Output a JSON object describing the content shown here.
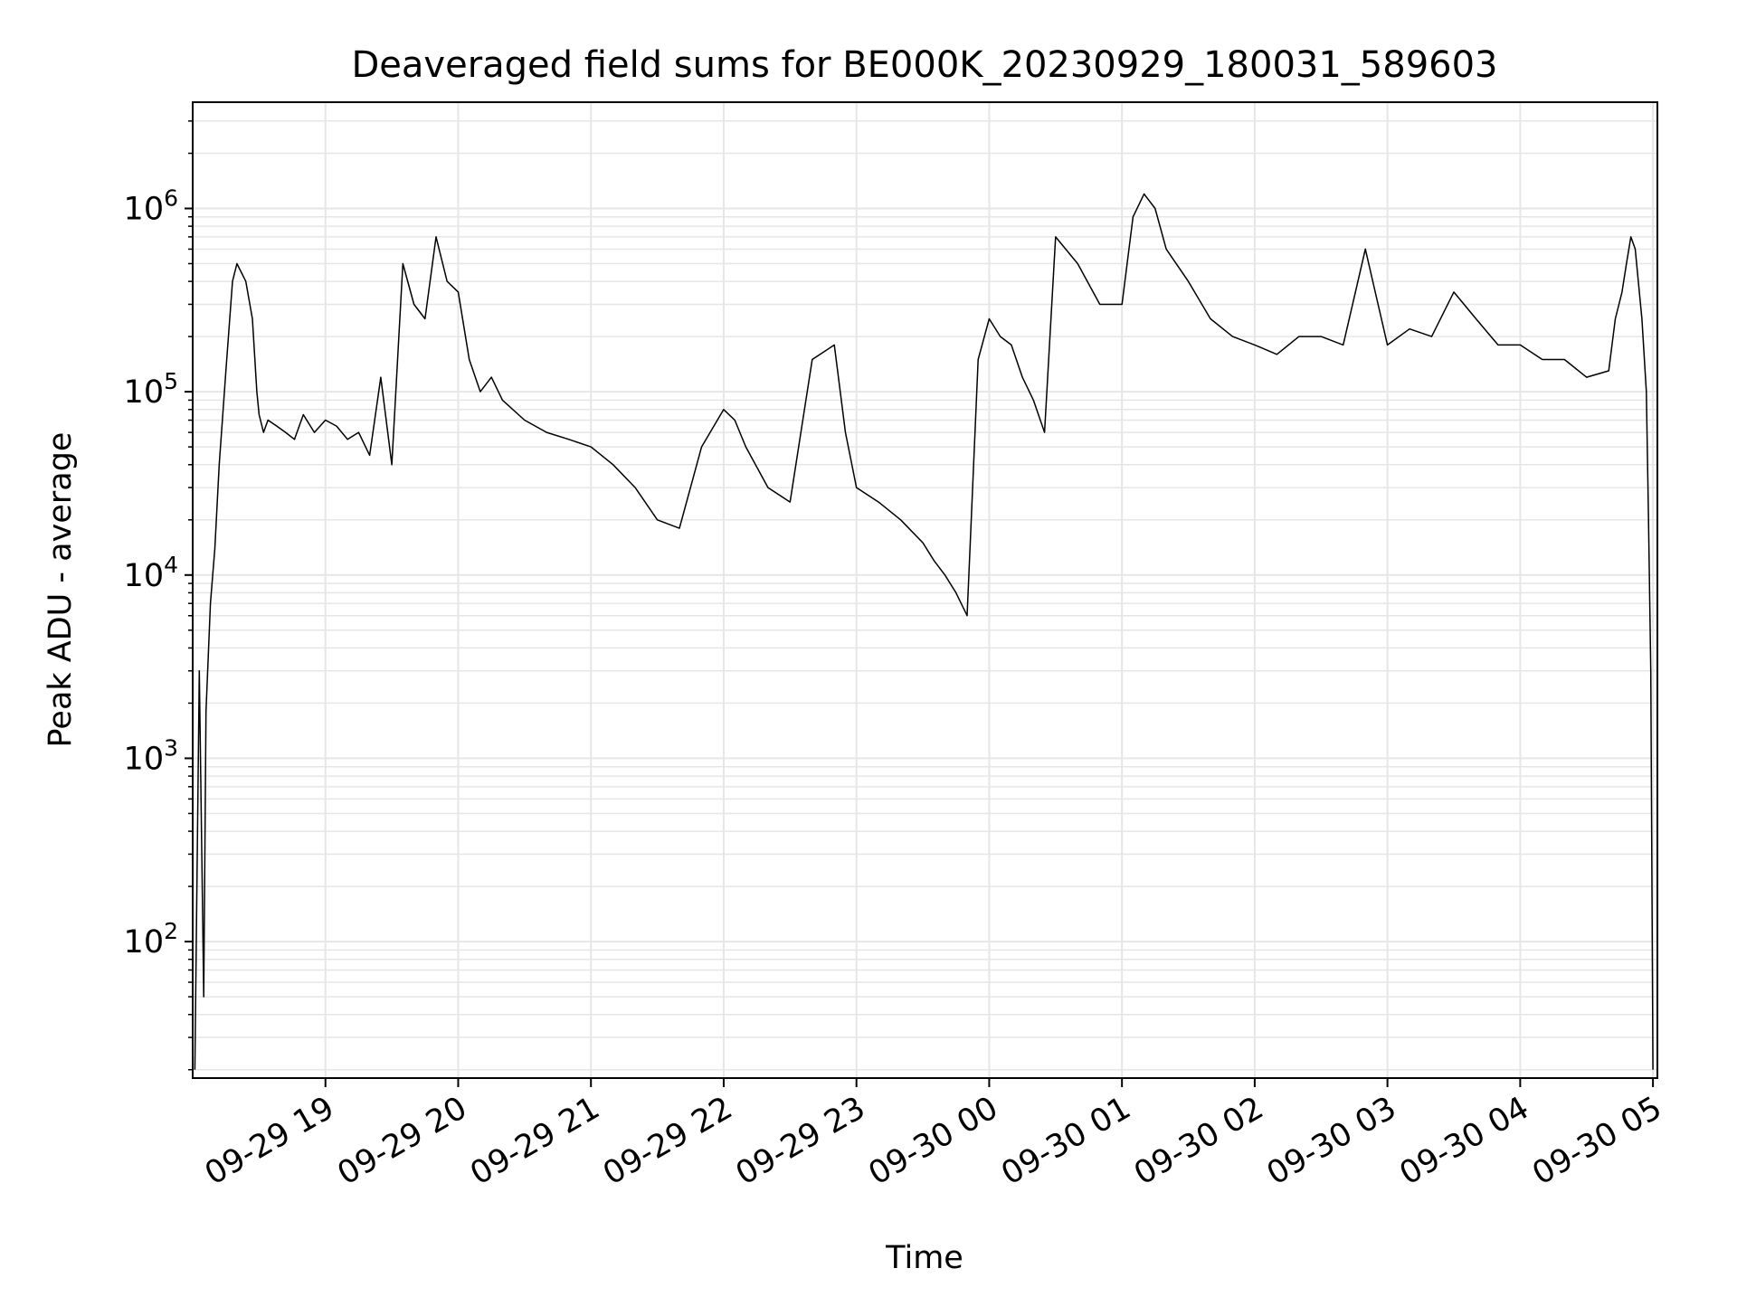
{
  "chart_data": {
    "type": "line",
    "title": "Deaveraged field sums for BE000K_20230929_180031_589603",
    "xlabel": "Time",
    "ylabel": "Peak ADU - average",
    "yscale": "log",
    "ylim": [
      18,
      3800000
    ],
    "xlim": [
      "2023-09-29 18:00",
      "2023-09-30 05:02"
    ],
    "grid": true,
    "line_color": "#000000",
    "grid_color": "#e6e6e6",
    "x_ticks": [
      {
        "value": "2023-09-29 19:00",
        "label": "09-29 19"
      },
      {
        "value": "2023-09-29 20:00",
        "label": "09-29 20"
      },
      {
        "value": "2023-09-29 21:00",
        "label": "09-29 21"
      },
      {
        "value": "2023-09-29 22:00",
        "label": "09-29 22"
      },
      {
        "value": "2023-09-29 23:00",
        "label": "09-29 23"
      },
      {
        "value": "2023-09-30 00:00",
        "label": "09-30 00"
      },
      {
        "value": "2023-09-30 01:00",
        "label": "09-30 01"
      },
      {
        "value": "2023-09-30 02:00",
        "label": "09-30 02"
      },
      {
        "value": "2023-09-30 03:00",
        "label": "09-30 03"
      },
      {
        "value": "2023-09-30 04:00",
        "label": "09-30 04"
      },
      {
        "value": "2023-09-30 05:00",
        "label": "09-30 05"
      }
    ],
    "y_ticks": [
      {
        "value": 100,
        "base": "10",
        "exp": "2"
      },
      {
        "value": 1000,
        "base": "10",
        "exp": "3"
      },
      {
        "value": 10000,
        "base": "10",
        "exp": "4"
      },
      {
        "value": 100000,
        "base": "10",
        "exp": "5"
      },
      {
        "value": 1000000,
        "base": "10",
        "exp": "6"
      }
    ],
    "series": [
      {
        "x": [
          "2023-09-29 18:01",
          "2023-09-29 18:03",
          "2023-09-29 18:05",
          "2023-09-29 18:06",
          "2023-09-29 18:08",
          "2023-09-29 18:10",
          "2023-09-29 18:12",
          "2023-09-29 18:15",
          "2023-09-29 18:18",
          "2023-09-29 18:20",
          "2023-09-29 18:24",
          "2023-09-29 18:27",
          "2023-09-29 18:29",
          "2023-09-29 18:30",
          "2023-09-29 18:32",
          "2023-09-29 18:34",
          "2023-09-29 18:38",
          "2023-09-29 18:42",
          "2023-09-29 18:46",
          "2023-09-29 18:50",
          "2023-09-29 18:55",
          "2023-09-29 19:00",
          "2023-09-29 19:05",
          "2023-09-29 19:10",
          "2023-09-29 19:15",
          "2023-09-29 19:20",
          "2023-09-29 19:25",
          "2023-09-29 19:30",
          "2023-09-29 19:35",
          "2023-09-29 19:40",
          "2023-09-29 19:45",
          "2023-09-29 19:50",
          "2023-09-29 19:55",
          "2023-09-29 20:00",
          "2023-09-29 20:05",
          "2023-09-29 20:10",
          "2023-09-29 20:15",
          "2023-09-29 20:20",
          "2023-09-29 20:30",
          "2023-09-29 20:40",
          "2023-09-29 20:50",
          "2023-09-29 21:00",
          "2023-09-29 21:10",
          "2023-09-29 21:20",
          "2023-09-29 21:30",
          "2023-09-29 21:40",
          "2023-09-29 21:50",
          "2023-09-29 22:00",
          "2023-09-29 22:05",
          "2023-09-29 22:10",
          "2023-09-29 22:20",
          "2023-09-29 22:30",
          "2023-09-29 22:40",
          "2023-09-29 22:50",
          "2023-09-29 22:55",
          "2023-09-29 23:00",
          "2023-09-29 23:10",
          "2023-09-29 23:20",
          "2023-09-29 23:30",
          "2023-09-29 23:35",
          "2023-09-29 23:40",
          "2023-09-29 23:45",
          "2023-09-29 23:50",
          "2023-09-29 23:55",
          "2023-09-30 00:00",
          "2023-09-30 00:05",
          "2023-09-30 00:10",
          "2023-09-30 00:15",
          "2023-09-30 00:20",
          "2023-09-30 00:25",
          "2023-09-30 00:30",
          "2023-09-30 00:40",
          "2023-09-30 00:50",
          "2023-09-30 01:00",
          "2023-09-30 01:05",
          "2023-09-30 01:10",
          "2023-09-30 01:15",
          "2023-09-30 01:20",
          "2023-09-30 01:30",
          "2023-09-30 01:40",
          "2023-09-30 01:50",
          "2023-09-30 02:00",
          "2023-09-30 02:10",
          "2023-09-30 02:20",
          "2023-09-30 02:30",
          "2023-09-30 02:40",
          "2023-09-30 02:50",
          "2023-09-30 03:00",
          "2023-09-30 03:10",
          "2023-09-30 03:20",
          "2023-09-30 03:30",
          "2023-09-30 03:40",
          "2023-09-30 03:50",
          "2023-09-30 04:00",
          "2023-09-30 04:10",
          "2023-09-30 04:20",
          "2023-09-30 04:30",
          "2023-09-30 04:40",
          "2023-09-30 04:43",
          "2023-09-30 04:46",
          "2023-09-30 04:48",
          "2023-09-30 04:50",
          "2023-09-30 04:52",
          "2023-09-30 04:55",
          "2023-09-30 04:57",
          "2023-09-30 04:58",
          "2023-09-30 04:59",
          "2023-09-30 05:00"
        ],
        "y": [
          20,
          3000,
          50,
          1800,
          7000,
          14000,
          40000,
          130000,
          400000,
          500000,
          400000,
          250000,
          100000,
          75000,
          60000,
          70000,
          65000,
          60000,
          55000,
          75000,
          60000,
          70000,
          65000,
          55000,
          60000,
          45000,
          120000,
          40000,
          500000,
          300000,
          250000,
          700000,
          400000,
          350000,
          150000,
          100000,
          120000,
          90000,
          70000,
          60000,
          55000,
          50000,
          40000,
          30000,
          20000,
          18000,
          50000,
          80000,
          70000,
          50000,
          30000,
          25000,
          150000,
          180000,
          60000,
          30000,
          25000,
          20000,
          15000,
          12000,
          10000,
          8000,
          6000,
          150000,
          250000,
          200000,
          180000,
          120000,
          90000,
          60000,
          700000,
          500000,
          300000,
          300000,
          900000,
          1200000,
          1000000,
          600000,
          400000,
          250000,
          200000,
          180000,
          160000,
          200000,
          200000,
          180000,
          600000,
          180000,
          220000,
          200000,
          350000,
          250000,
          180000,
          180000,
          150000,
          150000,
          120000,
          130000,
          250000,
          350000,
          500000,
          700000,
          600000,
          250000,
          100000,
          20000,
          3000,
          20
        ]
      }
    ]
  }
}
